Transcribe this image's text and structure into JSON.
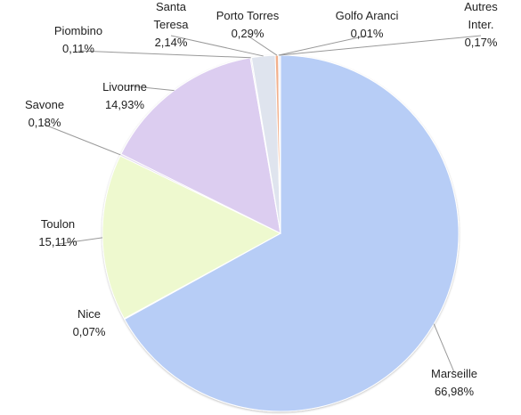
{
  "chart_data": {
    "type": "pie",
    "categories": [
      "Marseille",
      "Nice",
      "Toulon",
      "Savone",
      "Livourne",
      "Piombino",
      "Santa Teresa",
      "Porto Torres",
      "Golfo Aranci",
      "Autres Inter."
    ],
    "values": [
      66.98,
      0.07,
      15.11,
      0.18,
      14.93,
      0.11,
      2.14,
      0.29,
      0.01,
      0.17
    ],
    "value_labels": [
      "66,98%",
      "0,07%",
      "15,11%",
      "0,18%",
      "14,93%",
      "0,11%",
      "2,14%",
      "0,29%",
      "0,01%",
      "0,17%"
    ],
    "colors": [
      "#b7cdf6",
      "#c6e0a8",
      "#eef9cf",
      "#e3d9f0",
      "#dccdf0",
      "#e0e0e8",
      "#dfe4ee",
      "#f2b08c",
      "#f6c9a8",
      "#e9eef8"
    ]
  }
}
